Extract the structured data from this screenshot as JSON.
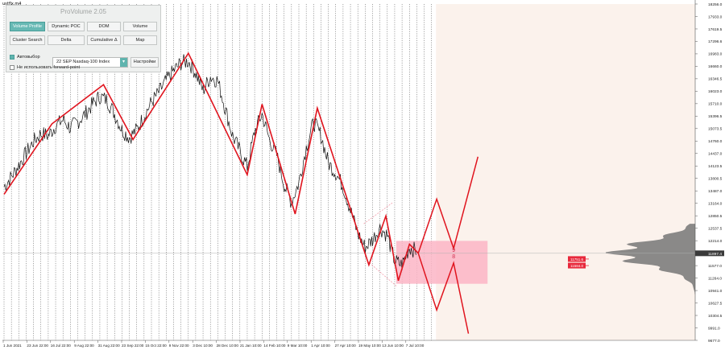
{
  "window": {
    "symbol": "ustflx.m4"
  },
  "panel": {
    "title": "ProVolume 2.05",
    "buttons": {
      "volume_profile": "Volume Profile",
      "dynamic_poc": "Dynamic POC",
      "dom": "DOM",
      "volume": "Volume",
      "cluster_search": "Cluster Search",
      "delta": "Delta",
      "cumulative_delta": "Cumulative Δ",
      "map": "Map",
      "settings": "Настройки"
    },
    "auto_label": "Автовыбор",
    "auto_checked": true,
    "instrument": "22 SEP Nasdaq-100 Index",
    "forward_label": "Не использовать forward-point",
    "forward_checked": false
  },
  "chart_data": {
    "type": "line",
    "price_axis": [
      "18256.0",
      "17933.0",
      "17619.5",
      "17296.6",
      "16983.0",
      "16660.0",
      "16346.5",
      "16023.0",
      "15710.0",
      "15396.5",
      "15073.5",
      "14760.0",
      "14437.0",
      "14123.5",
      "13800.5",
      "13487.0",
      "13164.0",
      "12850.5",
      "12537.5",
      "12214.0",
      "11900.9",
      "11577.0",
      "11264.0",
      "10941.0",
      "10627.5",
      "10304.5",
      "9991.0",
      "9677.0"
    ],
    "time_axis": [
      "1 Jun 2021",
      "23 Jun 22:00",
      "16 Jul 22:00",
      "9 Aug 22:00",
      "31 Aug 22:00",
      "23 Sep 22:00",
      "15 Oct 22:00",
      "9 Nov 22:00",
      "3 Dec 10:00",
      "28 Dec 10:00",
      "21 Jan 10:00",
      "14 Feb 10:00",
      "9 Mar 10:00",
      "1 Apr 10:00",
      "27 Apr 10:00",
      "19 May 10:00",
      "13 Jun 10:00",
      "7 Jul 10:00"
    ],
    "price_ylim": [
      9677.0,
      18256.0
    ],
    "current_price": "11897.4",
    "levels": [
      {
        "price": 11751.6,
        "label": "11751.6"
      },
      {
        "price": 11584.0,
        "label": "11584.0"
      }
    ],
    "range_box": {
      "top": 12214.0,
      "bottom": 11120.0
    },
    "box_digits": [
      "9",
      "8"
    ],
    "zigzag": [
      {
        "x": 0.0,
        "price": 13400
      },
      {
        "x": 6.5,
        "price": 15200
      },
      {
        "x": 13.5,
        "price": 16200
      },
      {
        "x": 17.5,
        "price": 14800
      },
      {
        "x": 25.0,
        "price": 17000
      },
      {
        "x": 33.0,
        "price": 13900
      },
      {
        "x": 35.0,
        "price": 15700
      },
      {
        "x": 39.5,
        "price": 12900
      },
      {
        "x": 42.5,
        "price": 15600
      },
      {
        "x": 49.5,
        "price": 11600
      },
      {
        "x": 51.8,
        "price": 12850
      },
      {
        "x": 53.5,
        "price": 11200
      },
      {
        "x": 55.0,
        "price": 12130
      },
      {
        "x": 56.2,
        "price": 11900
      }
    ],
    "projection_up": [
      {
        "x": 56.2,
        "price": 11900
      },
      {
        "x": 58.7,
        "price": 13280
      },
      {
        "x": 61.0,
        "price": 12020
      },
      {
        "x": 64.3,
        "price": 14360
      }
    ],
    "projection_down": [
      {
        "x": 56.2,
        "price": 11900
      },
      {
        "x": 58.7,
        "price": 10450
      },
      {
        "x": 61.0,
        "price": 11650
      },
      {
        "x": 63.0,
        "price": 9850
      }
    ],
    "channel": [
      {
        "x": 48.8,
        "price": 12650
      },
      {
        "x": 52.8,
        "price": 13200
      },
      {
        "x": 49.3,
        "price": 11700
      },
      {
        "x": 53.3,
        "price": 11050
      }
    ],
    "price_path": [
      {
        "x": 0.0,
        "price": 13600
      },
      {
        "x": 1.0,
        "price": 13850
      },
      {
        "x": 2.0,
        "price": 14150
      },
      {
        "x": 3.0,
        "price": 14450
      },
      {
        "x": 4.0,
        "price": 14750
      },
      {
        "x": 5.0,
        "price": 14950
      },
      {
        "x": 6.0,
        "price": 14900
      },
      {
        "x": 7.0,
        "price": 15150
      },
      {
        "x": 8.0,
        "price": 15300
      },
      {
        "x": 9.0,
        "price": 15100
      },
      {
        "x": 10.0,
        "price": 15250
      },
      {
        "x": 11.0,
        "price": 15450
      },
      {
        "x": 12.0,
        "price": 15700
      },
      {
        "x": 13.0,
        "price": 15900
      },
      {
        "x": 14.0,
        "price": 15800
      },
      {
        "x": 15.0,
        "price": 15450
      },
      {
        "x": 16.0,
        "price": 15050
      },
      {
        "x": 17.0,
        "price": 14850
      },
      {
        "x": 18.0,
        "price": 15050
      },
      {
        "x": 19.0,
        "price": 15400
      },
      {
        "x": 20.0,
        "price": 15750
      },
      {
        "x": 21.0,
        "price": 16000
      },
      {
        "x": 22.0,
        "price": 16300
      },
      {
        "x": 23.0,
        "price": 16550
      },
      {
        "x": 24.0,
        "price": 16750
      },
      {
        "x": 25.0,
        "price": 16800
      },
      {
        "x": 26.0,
        "price": 16500
      },
      {
        "x": 27.0,
        "price": 16050
      },
      {
        "x": 28.0,
        "price": 16400
      },
      {
        "x": 29.0,
        "price": 16300
      },
      {
        "x": 30.0,
        "price": 15600
      },
      {
        "x": 31.0,
        "price": 14900
      },
      {
        "x": 32.0,
        "price": 14500
      },
      {
        "x": 33.0,
        "price": 14100
      },
      {
        "x": 34.0,
        "price": 15000
      },
      {
        "x": 35.0,
        "price": 15450
      },
      {
        "x": 36.0,
        "price": 14800
      },
      {
        "x": 37.0,
        "price": 14400
      },
      {
        "x": 38.0,
        "price": 13650
      },
      {
        "x": 39.0,
        "price": 13200
      },
      {
        "x": 40.0,
        "price": 13700
      },
      {
        "x": 41.0,
        "price": 14600
      },
      {
        "x": 42.0,
        "price": 15250
      },
      {
        "x": 43.0,
        "price": 14900
      },
      {
        "x": 44.0,
        "price": 14200
      },
      {
        "x": 45.0,
        "price": 13950
      },
      {
        "x": 46.0,
        "price": 13600
      },
      {
        "x": 47.0,
        "price": 13000
      },
      {
        "x": 48.0,
        "price": 12400
      },
      {
        "x": 49.0,
        "price": 12050
      },
      {
        "x": 50.0,
        "price": 12250
      },
      {
        "x": 51.0,
        "price": 12550
      },
      {
        "x": 52.0,
        "price": 12350
      },
      {
        "x": 53.0,
        "price": 11700
      },
      {
        "x": 54.0,
        "price": 11600
      },
      {
        "x": 55.0,
        "price": 12050
      },
      {
        "x": 56.0,
        "price": 11950
      }
    ],
    "colors": {
      "zigzag": "#e0141e",
      "box": "#fcb5c6",
      "future_area": "#fbf2ec",
      "profile": "#7d7d7d"
    }
  }
}
